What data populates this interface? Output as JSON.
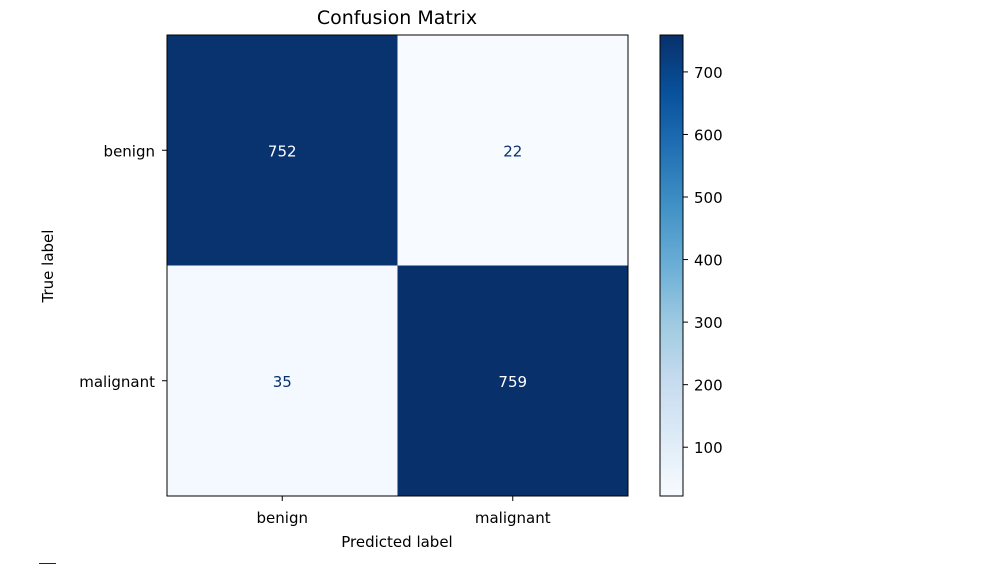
{
  "chart_data": {
    "type": "heatmap",
    "title": "Confusion Matrix",
    "xlabel": "Predicted label",
    "ylabel": "True label",
    "x_categories": [
      "benign",
      "malignant"
    ],
    "y_categories": [
      "benign",
      "malignant"
    ],
    "values": [
      [
        752,
        22
      ],
      [
        35,
        759
      ]
    ],
    "colormap": "Blues",
    "colorbar": {
      "vmin": 22,
      "vmax": 759,
      "ticks": [
        100,
        200,
        300,
        400,
        500,
        600,
        700
      ]
    },
    "colors": {
      "low": "#f7fbff",
      "high": "#08306b",
      "text_on_dark": "#ffffff",
      "text_on_light": "#08306b"
    },
    "grid": false
  }
}
